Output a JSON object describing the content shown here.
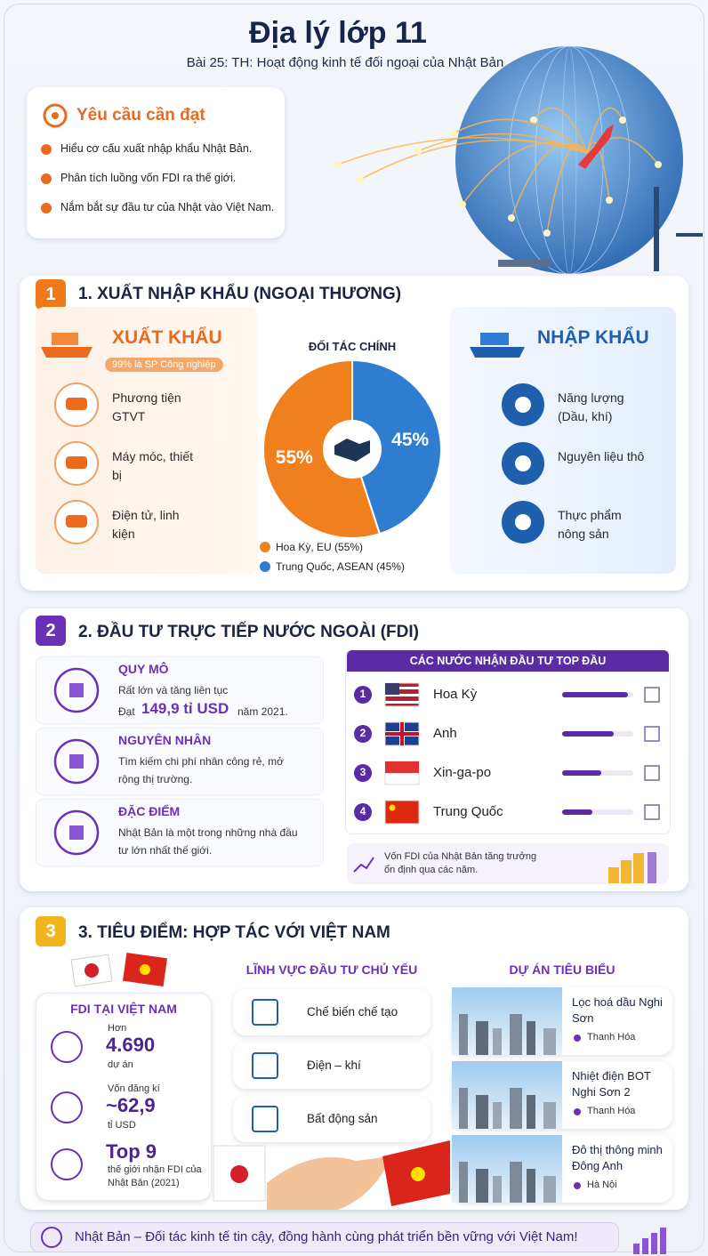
{
  "header": {
    "title": "Địa lý lớp 11",
    "subtitle": "Bài 25: TH: Hoạt động kinh tế đối ngoại của Nhật Bản"
  },
  "objectives": {
    "title": "Yêu cầu cần đạt",
    "items": [
      "Hiểu cơ cấu xuất nhập khẩu Nhật Bản.",
      "Phân tích luồng vốn FDI ra thế giới.",
      "Nắm bắt sự đầu tư của Nhật vào Việt Nam."
    ]
  },
  "section1": {
    "number": 1,
    "title": "1. XUẤT NHẬP KHẨU (NGOẠI THƯƠNG)",
    "export": {
      "title": "XUẤT KHẨU",
      "badge": "99% là SP Công nghiệp",
      "items": [
        "Phương tiện GTVT",
        "Máy móc, thiết bị",
        "Điện tử, linh kiện"
      ]
    },
    "import": {
      "title": "NHẬP KHẨU",
      "items": [
        "Năng lượng (Dầu, khí)",
        "Nguyên liệu thô",
        "Thực phẩm nông sản"
      ]
    },
    "partners": {
      "title": "ĐỐI TÁC CHÍNH",
      "names": [
        "Hoa Kỳ, EU (55%)",
        "Trung Quốc, ASEAN (45%)"
      ],
      "values": [
        55,
        45
      ],
      "value_labels": [
        "55%",
        "45%"
      ],
      "colors": [
        "#f0801e",
        "#2f7dd1"
      ]
    }
  },
  "section2": {
    "number": 2,
    "title": "2. ĐẦU TƯ TRỰC TIẾP NƯỚC NGOÀI (FDI)",
    "items": [
      {
        "title": "QUY MÔ",
        "text": "Rất lớn và tăng liên tục",
        "prefix": "Đạt",
        "highlight": "149,9 tỉ USD",
        "suffix": "năm 2021."
      },
      {
        "title": "NGUYÊN NHÂN",
        "text": "Tìm kiếm chi phí nhân công rẻ, mở rộng thị trường."
      },
      {
        "title": "ĐẶC ĐIỂM",
        "text": "Nhật Bản là một trong những nhà đầu tư lớn nhất thế giới."
      }
    ],
    "ranking": {
      "title": "CÁC NƯỚC NHẬN ĐẦU TƯ TOP ĐẦU",
      "rows": [
        {
          "rank": 1,
          "name": "Hoa Kỳ"
        },
        {
          "rank": 2,
          "name": "Anh"
        },
        {
          "rank": 3,
          "name": "Xin-ga-po"
        },
        {
          "rank": 4,
          "name": "Trung Quốc"
        }
      ]
    },
    "note": "Vốn FDI của Nhật Bản tăng trưởng ổn định qua các năm."
  },
  "section3": {
    "number": 3,
    "title": "3. TIÊU ĐIỂM: HỢP TÁC VỚI VIỆT NAM",
    "fdi": {
      "title": "FDI TẠI VIỆT NAM",
      "stats": [
        {
          "label": "Hơn",
          "value": "4.690",
          "unit": "dự án"
        },
        {
          "label": "Vốn đăng kí",
          "value": "~62,9",
          "unit": "tỉ USD"
        },
        {
          "value": "Top 9",
          "unit": "thế giới nhận FDI của Nhật Bản (2021)"
        }
      ]
    },
    "fields": {
      "title": "LĨNH VỰC ĐẦU TƯ CHỦ YẾU",
      "items": [
        "Chế biến chế tạo",
        "Điện – khí",
        "Bất động sản"
      ]
    },
    "projects": {
      "title": "DỰ ÁN TIÊU BIỂU",
      "items": [
        {
          "name": "Lọc hoá dầu Nghi Sơn",
          "place": "Thanh Hóa"
        },
        {
          "name": "Nhiệt điện BOT Nghi Sơn 2",
          "place": "Thanh Hóa"
        },
        {
          "name": "Đô thị thông minh Đông Anh",
          "place": "Hà Nội"
        }
      ]
    }
  },
  "footer": "Nhật Bản – Đối tác kinh tế tin cậy, đồng hành cùng phát triển bền vững với Việt Nam!"
}
